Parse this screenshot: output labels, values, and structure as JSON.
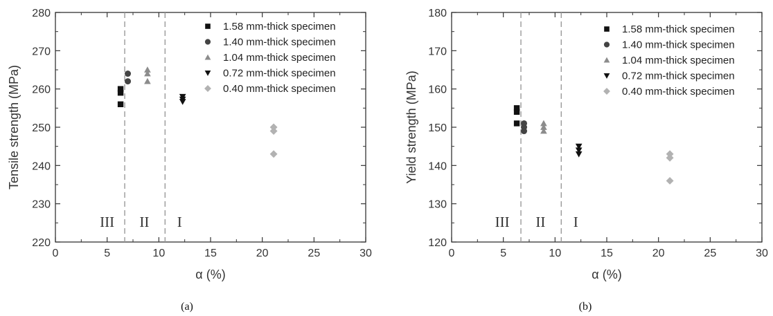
{
  "figure": {
    "colors": {
      "black": "#111111",
      "darkgray": "#444444",
      "gray": "#8c8c8c",
      "lightgray": "#b2b2b2",
      "axis": "#333333",
      "divider": "#999999"
    }
  },
  "chart_data": [
    {
      "type": "scatter",
      "caption": "(a)",
      "xlabel": "α (%)",
      "ylabel": "Tensile strength (MPa)",
      "xlim": [
        0,
        30
      ],
      "ylim": [
        220,
        280
      ],
      "xticks": [
        0,
        5,
        10,
        15,
        20,
        25,
        30
      ],
      "yticks": [
        220,
        230,
        240,
        250,
        260,
        270,
        280
      ],
      "grid": false,
      "legend_position": "top-right",
      "dividers": [
        6.7,
        10.6
      ],
      "region_labels": [
        {
          "text": "III",
          "x": 5.0,
          "y": 224
        },
        {
          "text": "II",
          "x": 8.6,
          "y": 224
        },
        {
          "text": "I",
          "x": 12.0,
          "y": 224
        }
      ],
      "series": [
        {
          "name": "1.58 mm-thick specimen",
          "marker": "square",
          "color": "#111111",
          "points": [
            [
              6.3,
              260
            ],
            [
              6.3,
              259
            ],
            [
              6.3,
              256
            ]
          ]
        },
        {
          "name": "1.40 mm-thick specimen",
          "marker": "circle",
          "color": "#444444",
          "points": [
            [
              7.0,
              264
            ],
            [
              7.0,
              262
            ]
          ]
        },
        {
          "name": "1.04 mm-thick specimen",
          "marker": "triangle-up",
          "color": "#8c8c8c",
          "points": [
            [
              8.9,
              265
            ],
            [
              8.9,
              264
            ],
            [
              8.9,
              262
            ]
          ]
        },
        {
          "name": "0.72 mm-thick specimen",
          "marker": "triangle-down",
          "color": "#111111",
          "points": [
            [
              12.3,
              258
            ],
            [
              12.3,
              257.3
            ],
            [
              12.3,
              256.7
            ]
          ]
        },
        {
          "name": "0.40 mm-thick specimen",
          "marker": "diamond",
          "color": "#b2b2b2",
          "points": [
            [
              21.1,
              250
            ],
            [
              21.1,
              249
            ],
            [
              21.1,
              243
            ]
          ]
        }
      ]
    },
    {
      "type": "scatter",
      "caption": "(b)",
      "xlabel": "α (%)",
      "ylabel": "Yield strength (MPa)",
      "xlim": [
        0,
        30
      ],
      "ylim": [
        120,
        180
      ],
      "xticks": [
        0,
        5,
        10,
        15,
        20,
        25,
        30
      ],
      "yticks": [
        120,
        130,
        140,
        150,
        160,
        170,
        180
      ],
      "grid": false,
      "legend_position": "top-right",
      "dividers": [
        6.7,
        10.6
      ],
      "region_labels": [
        {
          "text": "III",
          "x": 4.9,
          "y": 124
        },
        {
          "text": "II",
          "x": 8.6,
          "y": 124
        },
        {
          "text": "I",
          "x": 12.0,
          "y": 124
        }
      ],
      "series": [
        {
          "name": "1.58 mm-thick specimen",
          "marker": "square",
          "color": "#111111",
          "points": [
            [
              6.3,
              155
            ],
            [
              6.3,
              154
            ],
            [
              6.3,
              151
            ]
          ]
        },
        {
          "name": "1.40 mm-thick specimen",
          "marker": "circle",
          "color": "#444444",
          "points": [
            [
              7.0,
              151
            ],
            [
              7.0,
              150
            ],
            [
              7.0,
              149
            ]
          ]
        },
        {
          "name": "1.04 mm-thick specimen",
          "marker": "triangle-up",
          "color": "#8c8c8c",
          "points": [
            [
              8.9,
              151
            ],
            [
              8.9,
              150
            ],
            [
              8.9,
              149
            ]
          ]
        },
        {
          "name": "0.72 mm-thick specimen",
          "marker": "triangle-down",
          "color": "#111111",
          "points": [
            [
              12.3,
              145
            ],
            [
              12.3,
              144
            ],
            [
              12.3,
              143
            ]
          ]
        },
        {
          "name": "0.40 mm-thick specimen",
          "marker": "diamond",
          "color": "#b2b2b2",
          "points": [
            [
              21.1,
              143
            ],
            [
              21.1,
              142
            ],
            [
              21.1,
              136
            ]
          ]
        }
      ]
    }
  ]
}
